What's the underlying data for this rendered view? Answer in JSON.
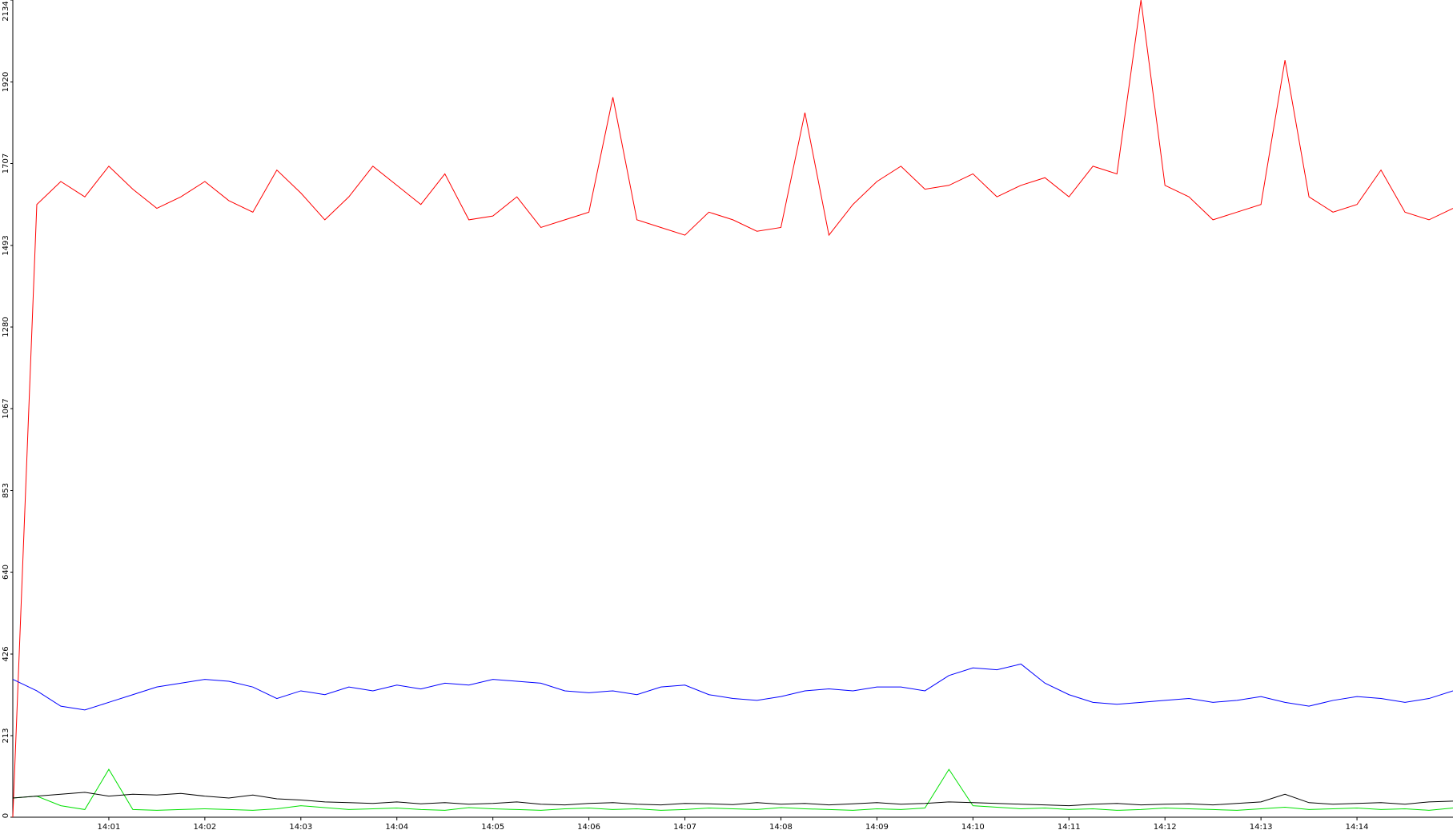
{
  "chart_data": {
    "type": "line",
    "x": [
      0,
      0.25,
      0.5,
      0.75,
      1,
      1.25,
      1.5,
      1.75,
      2,
      2.25,
      2.5,
      2.75,
      3,
      3.25,
      3.5,
      3.75,
      4,
      4.25,
      4.5,
      4.75,
      5,
      5.25,
      5.5,
      5.75,
      6,
      6.25,
      6.5,
      6.75,
      7,
      7.25,
      7.5,
      7.75,
      8,
      8.25,
      8.5,
      8.75,
      9,
      9.25,
      9.5,
      9.75,
      10,
      10.25,
      10.5,
      10.75,
      11,
      11.25,
      11.5,
      11.75,
      12,
      12.25,
      12.5,
      12.75,
      13,
      13.25,
      13.5,
      13.75,
      14,
      14.25,
      14.5,
      14.75,
      15
    ],
    "series": [
      {
        "color": "#ff0000",
        "values": [
          0,
          1600,
          1660,
          1620,
          1700,
          1640,
          1590,
          1620,
          1660,
          1610,
          1580,
          1690,
          1630,
          1560,
          1620,
          1700,
          1650,
          1600,
          1680,
          1560,
          1570,
          1620,
          1540,
          1560,
          1580,
          1880,
          1560,
          1540,
          1520,
          1580,
          1560,
          1530,
          1540,
          1840,
          1520,
          1600,
          1660,
          1700,
          1640,
          1650,
          1680,
          1620,
          1650,
          1670,
          1620,
          1700,
          1680,
          2134,
          1650,
          1620,
          1560,
          1580,
          1600,
          1977,
          1620,
          1580,
          1600,
          1690,
          1580,
          1560,
          1590
        ]
      },
      {
        "color": "#0000ff",
        "values": [
          360,
          330,
          290,
          280,
          300,
          320,
          340,
          350,
          360,
          355,
          340,
          310,
          330,
          320,
          340,
          330,
          345,
          335,
          350,
          345,
          360,
          355,
          350,
          330,
          325,
          330,
          320,
          340,
          345,
          320,
          310,
          305,
          315,
          330,
          335,
          330,
          340,
          340,
          330,
          370,
          390,
          385,
          400,
          350,
          320,
          300,
          295,
          300,
          305,
          310,
          300,
          305,
          315,
          300,
          290,
          305,
          315,
          310,
          300,
          310,
          330
        ]
      },
      {
        "color": "#00e000",
        "values": [
          50,
          55,
          30,
          20,
          125,
          20,
          18,
          20,
          22,
          20,
          18,
          22,
          30,
          25,
          20,
          22,
          24,
          20,
          18,
          25,
          22,
          20,
          18,
          22,
          24,
          20,
          22,
          18,
          20,
          24,
          22,
          20,
          25,
          22,
          20,
          18,
          22,
          20,
          24,
          125,
          30,
          26,
          22,
          24,
          20,
          22,
          18,
          20,
          24,
          22,
          20,
          18,
          22,
          26,
          20,
          22,
          24,
          20,
          22,
          18,
          24
        ]
      },
      {
        "color": "#000000",
        "values": [
          50,
          55,
          60,
          65,
          55,
          60,
          58,
          62,
          55,
          50,
          58,
          48,
          45,
          40,
          38,
          36,
          40,
          35,
          38,
          34,
          36,
          40,
          34,
          32,
          36,
          38,
          34,
          32,
          36,
          35,
          33,
          38,
          34,
          36,
          32,
          35,
          38,
          34,
          36,
          40,
          38,
          36,
          34,
          32,
          30,
          34,
          36,
          32,
          34,
          35,
          32,
          36,
          40,
          60,
          38,
          34,
          36,
          38,
          34,
          40,
          42
        ]
      }
    ],
    "xlim": [
      0,
      15
    ],
    "xticks": [
      {
        "value": 1,
        "label": "14:01"
      },
      {
        "value": 2,
        "label": "14:02"
      },
      {
        "value": 3,
        "label": "14:03"
      },
      {
        "value": 4,
        "label": "14:04"
      },
      {
        "value": 5,
        "label": "14:05"
      },
      {
        "value": 6,
        "label": "14:06"
      },
      {
        "value": 7,
        "label": "14:07"
      },
      {
        "value": 8,
        "label": "14:08"
      },
      {
        "value": 9,
        "label": "14:09"
      },
      {
        "value": 10,
        "label": "14:10"
      },
      {
        "value": 11,
        "label": "14:11"
      },
      {
        "value": 12,
        "label": "14:12"
      },
      {
        "value": 13,
        "label": "14:13"
      },
      {
        "value": 14,
        "label": "14:14"
      }
    ],
    "ylim": [
      0,
      2134
    ],
    "yticks": [
      0,
      213,
      426,
      640,
      853,
      1067,
      1280,
      1493,
      1707,
      1920,
      2134
    ]
  }
}
